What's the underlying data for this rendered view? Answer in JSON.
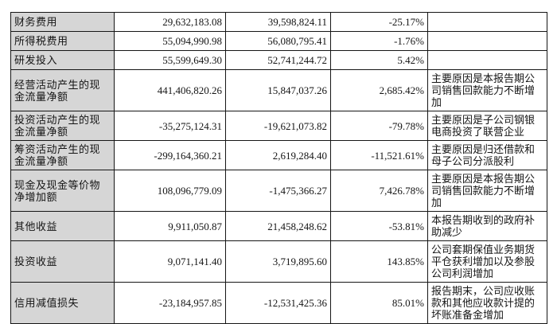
{
  "page": {
    "background": "#ffffff",
    "description": "Financial report table of changed items with period values, change percentage and reasons"
  },
  "table": {
    "label_column_bg": "#d6d6d6",
    "border_color": "#161616",
    "text_color": "#151515",
    "columns": [
      "item",
      "current_period",
      "prior_period",
      "change_percent",
      "reason"
    ],
    "rows": [
      {
        "label": "财务费用",
        "current": "29,632,183.08",
        "prior": "39,598,824.11",
        "change": "-25.17%",
        "reason": ""
      },
      {
        "label": "所得税费用",
        "current": "55,094,990.98",
        "prior": "56,080,795.41",
        "change": "-1.76%",
        "reason": ""
      },
      {
        "label": "研发投入",
        "current": "55,599,649.30",
        "prior": "52,741,244.72",
        "change": "5.42%",
        "reason": ""
      },
      {
        "label": "经营活动产生的现金流量净额",
        "current": "441,406,820.26",
        "prior": "15,847,037.26",
        "change": "2,685.42%",
        "reason": "主要原因是本报告期公司销售回款能力不断增加"
      },
      {
        "label": "投资活动产生的现金流量净额",
        "current": "-35,275,124.31",
        "prior": "-19,621,073.82",
        "change": "-79.78%",
        "reason": "主要原因是子公司钢银电商投资了联营企业"
      },
      {
        "label": "筹资活动产生的现金流量净额",
        "current": "-299,164,360.21",
        "prior": "2,619,284.40",
        "change": "-11,521.61%",
        "reason": "主要原因是归还借款和母子公司分派股利"
      },
      {
        "label": "现金及现金等价物净增加额",
        "current": "108,096,779.09",
        "prior": "-1,475,366.27",
        "change": "7,426.78%",
        "reason": "主要原因是本报告期公司销售回款能力不断增加"
      },
      {
        "label": "其他收益",
        "current": "9,911,050.87",
        "prior": "21,458,248.62",
        "change": "-53.81%",
        "reason": "本报告期收到的政府补助减少"
      },
      {
        "label": "投资收益",
        "current": "9,071,141.40",
        "prior": "3,719,895.60",
        "change": "143.85%",
        "reason": "公司套期保值业务期货平仓获利增加以及参股公司利润增加"
      },
      {
        "label": "信用减值损失",
        "current": "-23,184,957.85",
        "prior": "-12,531,425.36",
        "change": "85.01%",
        "reason": "报告期末，公司应收账款和其他应收款计提的坏账准备金增加"
      }
    ]
  }
}
